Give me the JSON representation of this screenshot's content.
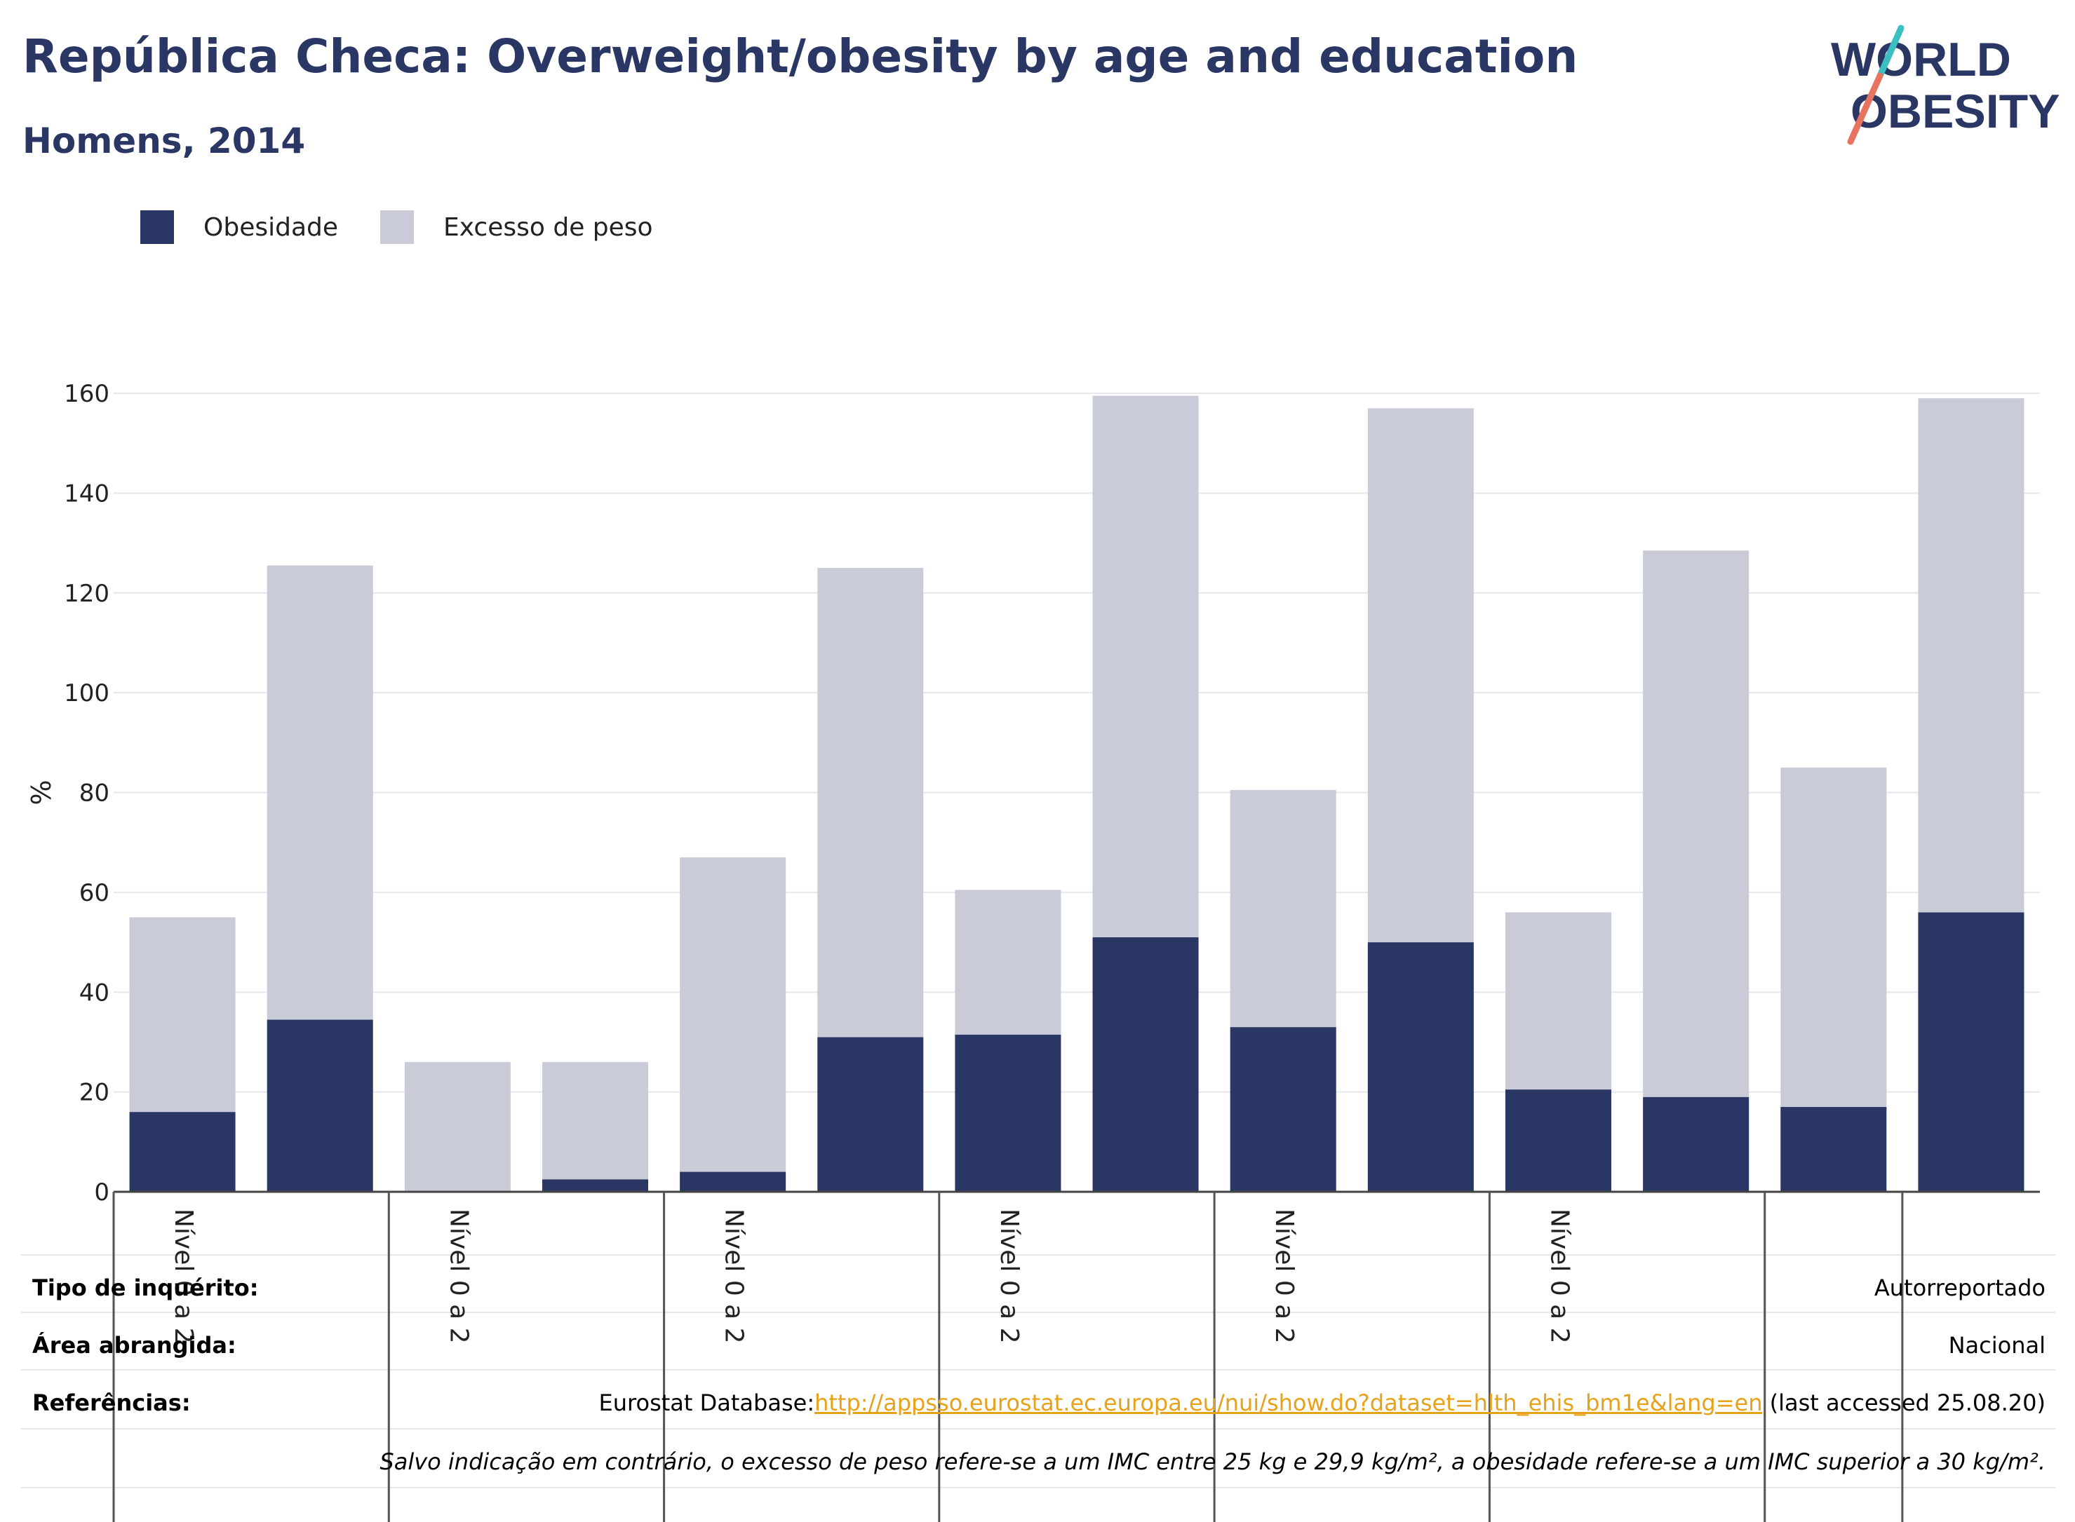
{
  "title": "República Checa: Overweight/obesity by age and education",
  "subtitle": "Homens, 2014",
  "logo": {
    "line1": "WORLD",
    "line2": "OBESITY"
  },
  "colors": {
    "obesity": "#2a3764",
    "overweight": "#c9ccd8",
    "title": "#2a3764",
    "link": "#e8a21a"
  },
  "chart_data": {
    "type": "bar",
    "stacked": true,
    "ylabel": "%",
    "ylim": [
      0,
      160
    ],
    "yticks": [
      0,
      20,
      40,
      60,
      80,
      100,
      120,
      140,
      160
    ],
    "grid": true,
    "legend_position": "top-left",
    "categories": [
      "Nível 0 a 2",
      "",
      "Nível 0 a 2",
      "",
      "Nível 0 a 2",
      "",
      "Nível 0 a 2",
      "",
      "Nível 0 a 2",
      "",
      "Nível 0 a 2",
      "",
      "",
      ""
    ],
    "series": [
      {
        "name": "Obesidade",
        "color": "#2a3764",
        "values": [
          16,
          34.5,
          0,
          2.5,
          4,
          31,
          31.5,
          51,
          33,
          50,
          20.5,
          19,
          17,
          56
        ]
      },
      {
        "name": "Excesso de peso",
        "color": "#c9ccd8",
        "values": [
          39,
          91,
          26,
          23.5,
          63,
          94,
          29,
          108.5,
          47.5,
          107,
          35.5,
          109.5,
          68,
          103
        ]
      }
    ],
    "group_dividers_after": [
      1,
      3,
      5,
      7,
      9,
      11,
      12
    ]
  },
  "info": {
    "survey_label": "Tipo de inquérito:",
    "survey_value": "Autorreportado",
    "area_label": "Área abrangida:",
    "area_value": "Nacional",
    "ref_label": "Referências:",
    "ref_prefix": "Eurostat Database:",
    "ref_link": "http://appsso.eurostat.ec.europa.eu/nui/show.do?dataset=hlth_ehis_bm1e&lang=en",
    "ref_suffix": " (last accessed 25.08.20)",
    "note": "Salvo indicação em contrário, o excesso de peso refere-se a um IMC entre 25 kg e 29,9 kg/m², a obesidade refere-se a um IMC superior a 30 kg/m²."
  }
}
